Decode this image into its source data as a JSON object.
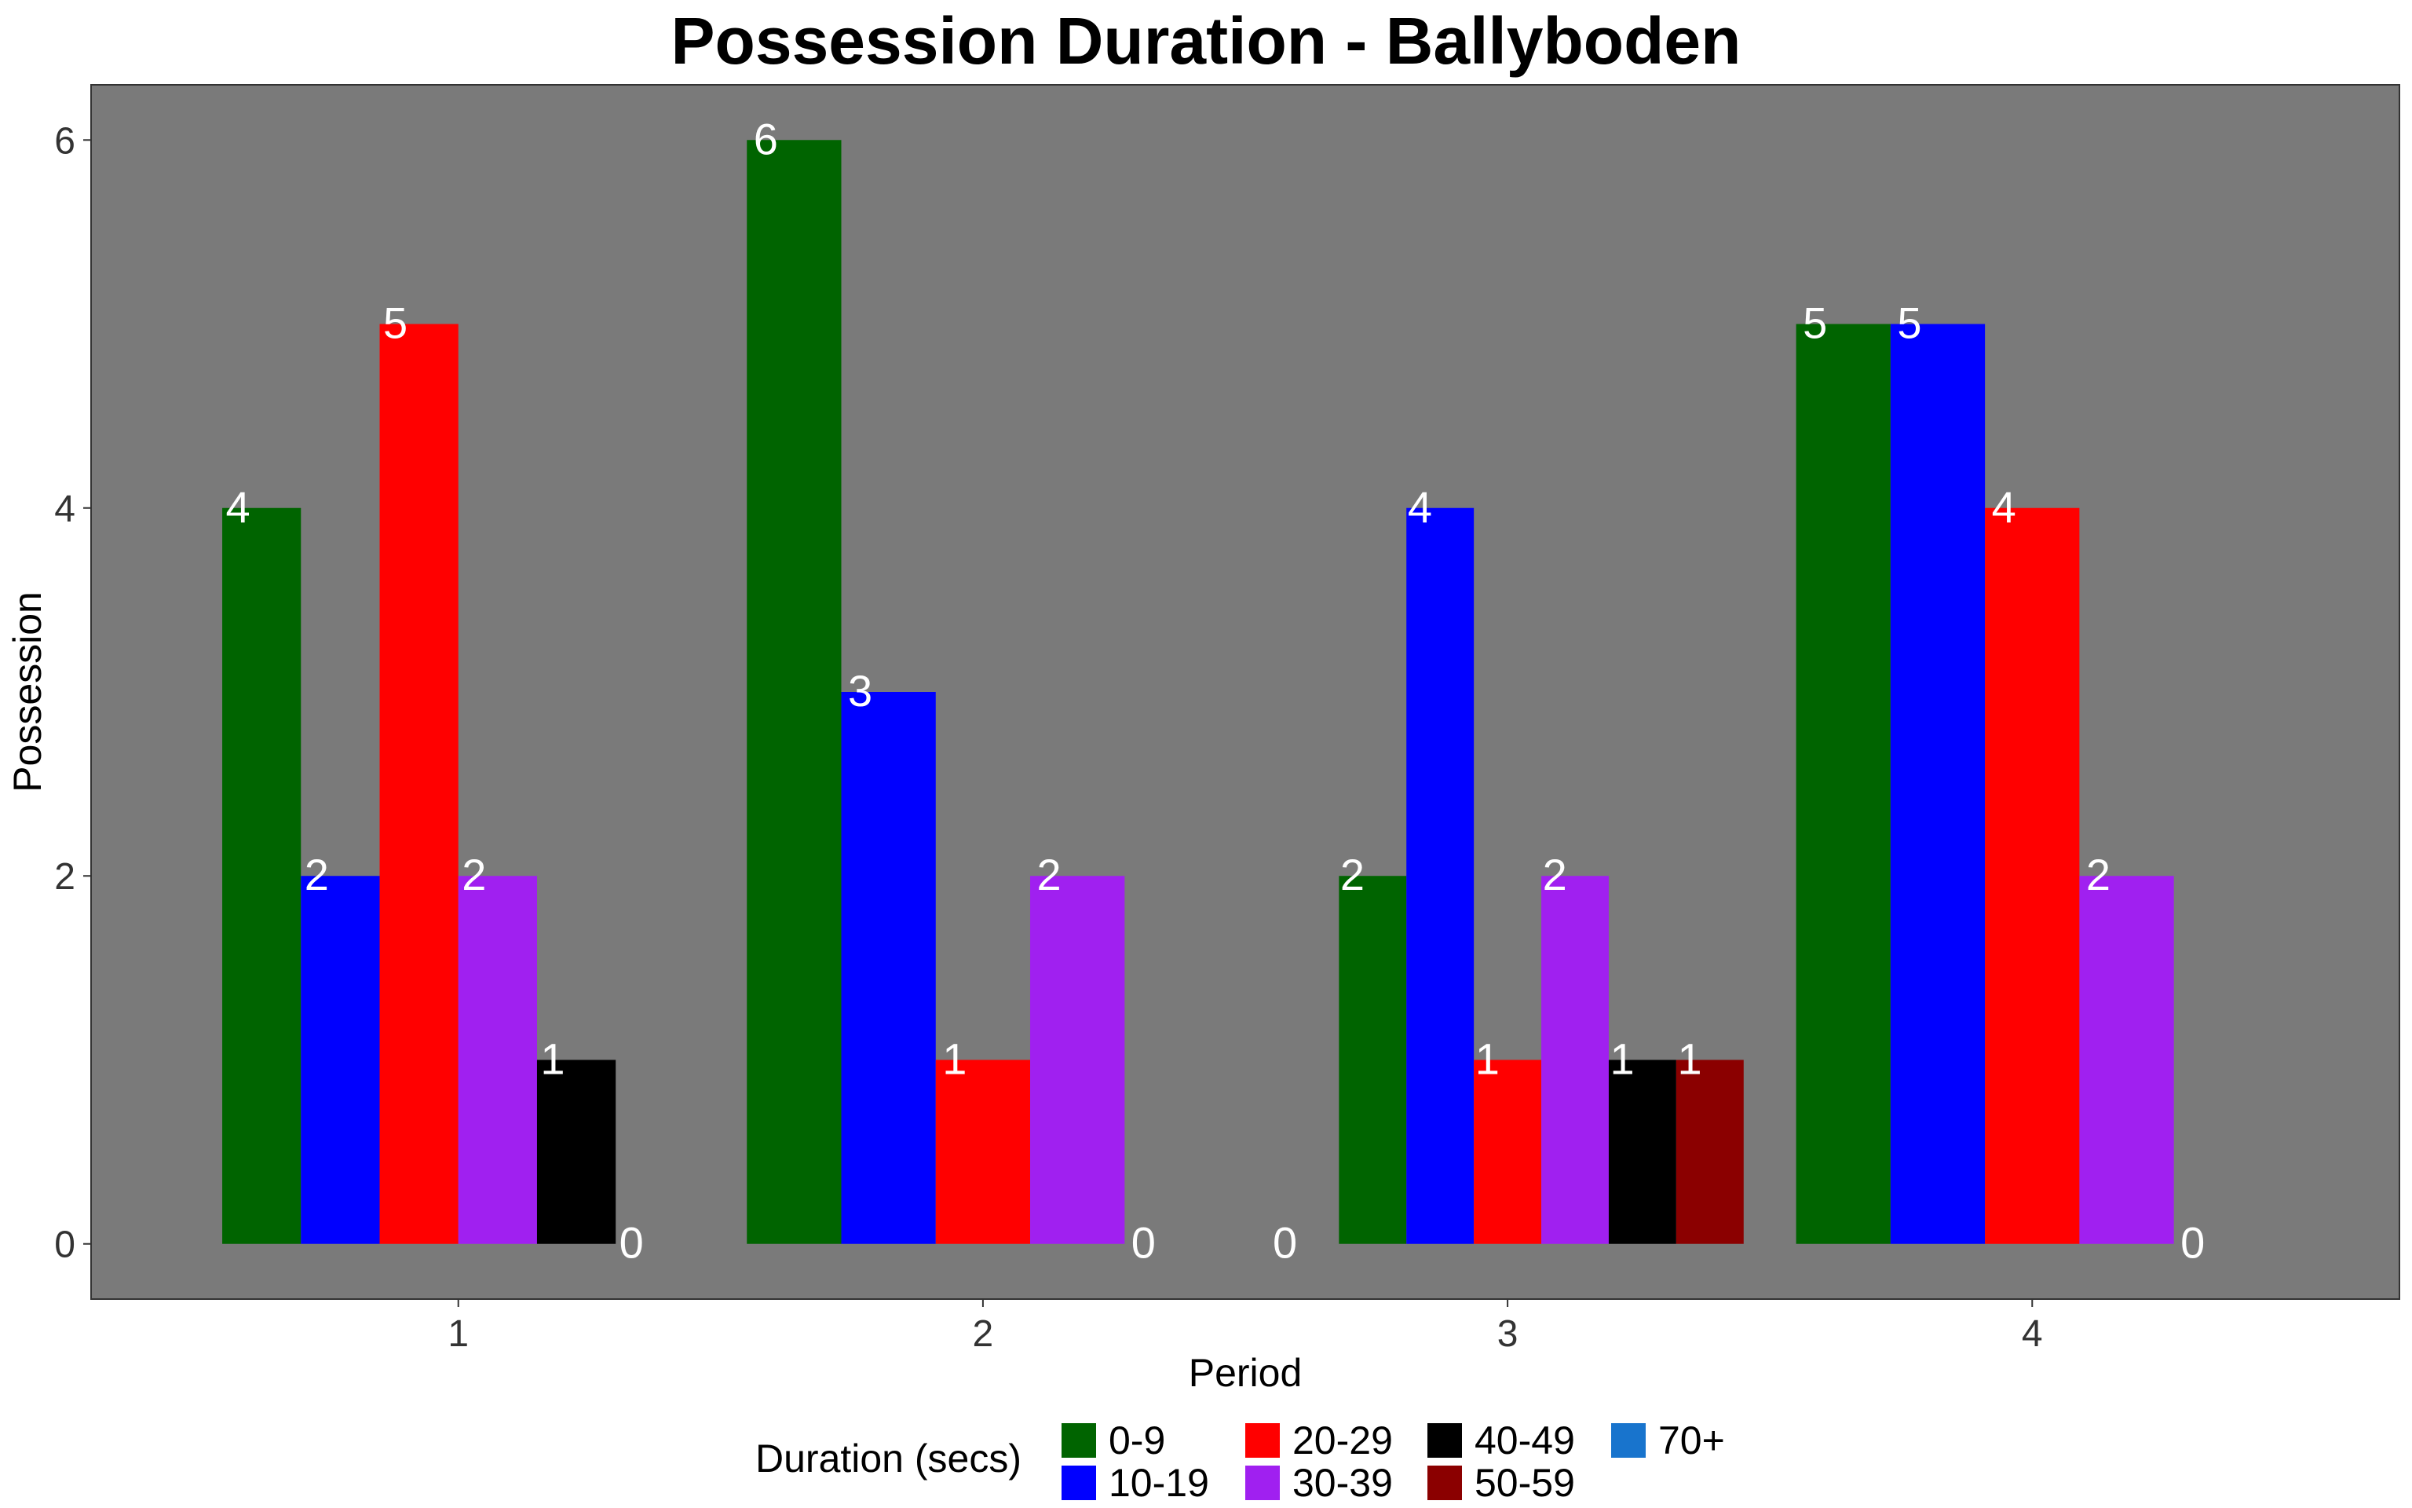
{
  "chart_data": {
    "type": "bar",
    "title": "Possession Duration - Ballyboden",
    "xlabel": "Period",
    "ylabel": "Possession",
    "categories": [
      "1",
      "2",
      "3",
      "4"
    ],
    "ylim": [
      -0.3,
      6.3
    ],
    "yticks": [
      "0",
      "2",
      "4",
      "6"
    ],
    "grid": false,
    "legend_title": "Duration (secs)",
    "legend_position": "bottom",
    "series": [
      {
        "name": "0-9",
        "color": "#006400",
        "values": [
          4,
          6,
          2,
          5
        ]
      },
      {
        "name": "10-19",
        "color": "#0000FF",
        "values": [
          2,
          3,
          4,
          5
        ]
      },
      {
        "name": "20-29",
        "color": "#FF0000",
        "values": [
          5,
          1,
          1,
          4
        ]
      },
      {
        "name": "30-39",
        "color": "#A020F0",
        "values": [
          2,
          2,
          2,
          2
        ]
      },
      {
        "name": "40-49",
        "color": "#000000",
        "values": [
          1,
          null,
          1,
          null
        ]
      },
      {
        "name": "50-59",
        "color": "#8B0000",
        "values": [
          null,
          null,
          1,
          null
        ]
      },
      {
        "name": "70+",
        "color": "#1874CD",
        "values": [
          0,
          0,
          0,
          0
        ]
      }
    ],
    "bar_groups": [
      [
        "0-9",
        "10-19",
        "20-29",
        "30-39",
        "40-49",
        "70+"
      ],
      [
        "0-9",
        "10-19",
        "20-29",
        "30-39",
        "70+"
      ],
      [
        "70+",
        "0-9",
        "10-19",
        "20-29",
        "30-39",
        "40-49",
        "50-59"
      ],
      [
        "0-9",
        "10-19",
        "20-29",
        "30-39",
        "70+"
      ]
    ],
    "panel_background": "#7A7A7A",
    "label_color": "#FFFFFF"
  }
}
